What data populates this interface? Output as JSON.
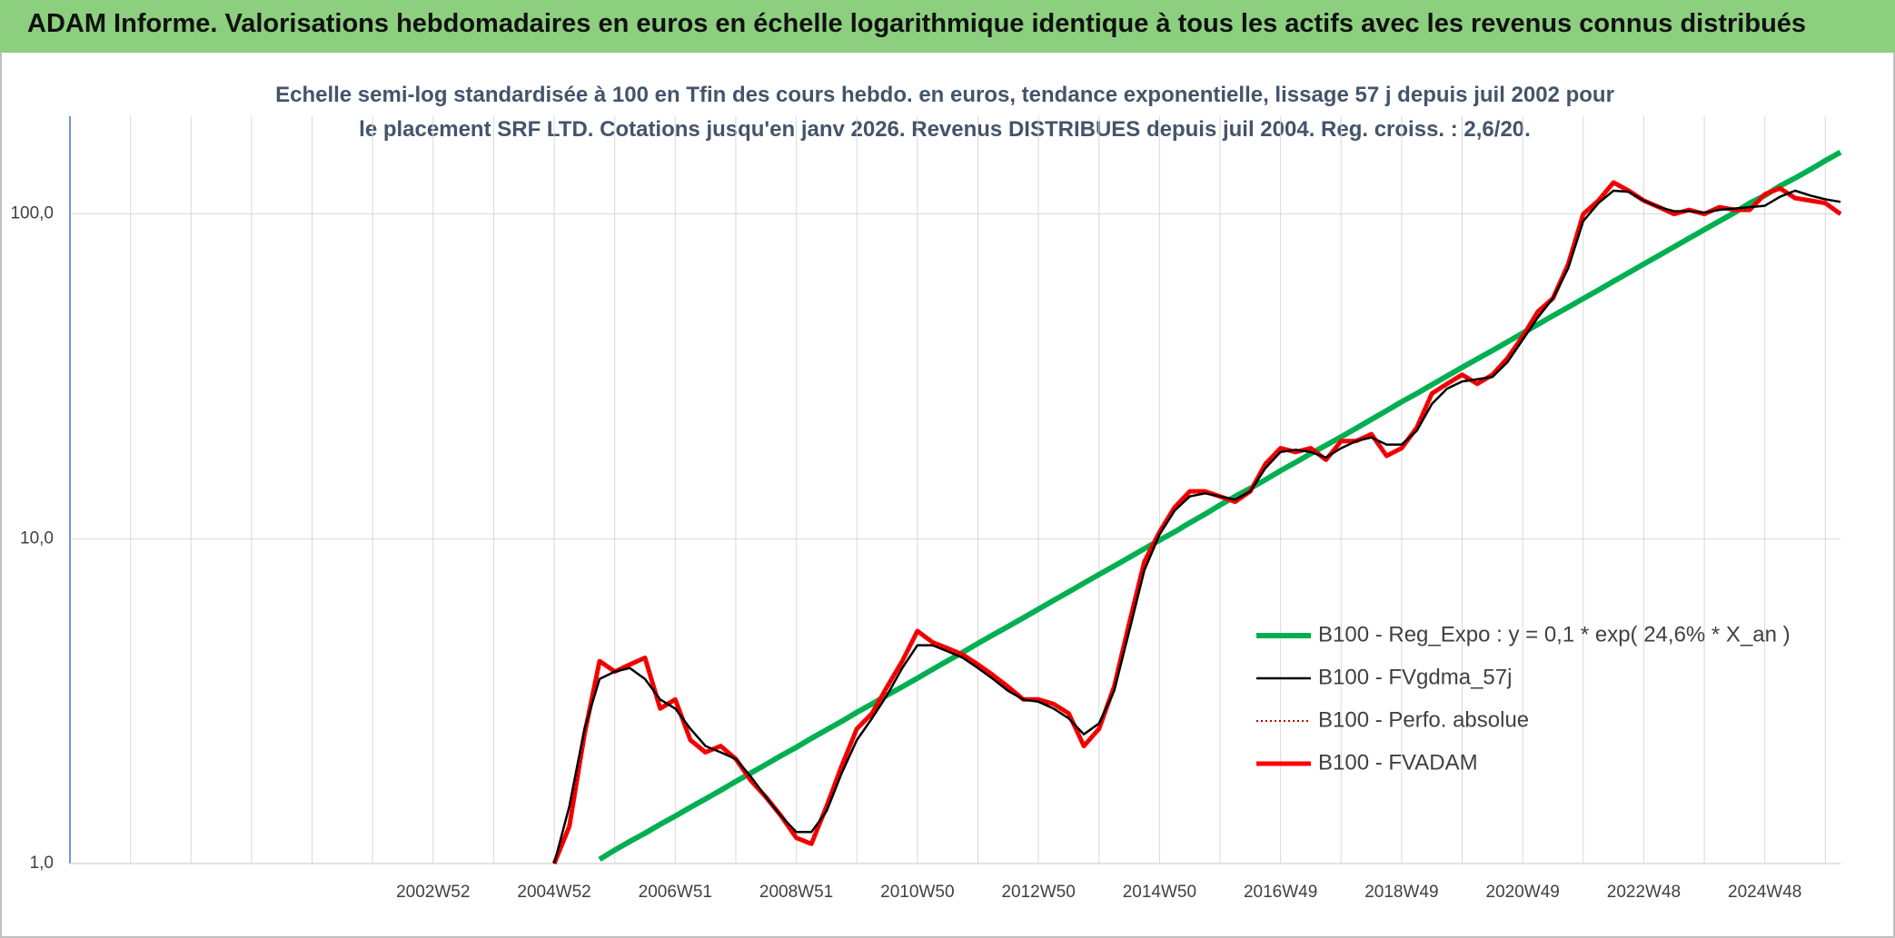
{
  "chart_data": {
    "type": "line",
    "title": "ADAM Informe. Valorisations hebdomadaires en euros en échelle logarithmique identique à tous les actifs avec les revenus connus distribués",
    "subtitle": "Echelle semi-log standardisée à 100 en Tfin des cours hebdo. en euros, tendance exponentielle, lissage 57 j depuis juil 2002 pour le placement SRF LTD. Cotations jusqu'en janv 2026. Revenus DISTRIBUES depuis juil 2004. Reg. croiss. : 2,6/20.",
    "log_scale": true,
    "grid": true,
    "legend": "right",
    "ylim": [
      1,
      200
    ],
    "yticks": [
      {
        "value": 1,
        "label": "1,0"
      },
      {
        "value": 10,
        "label": "10,0"
      },
      {
        "value": 100,
        "label": "100,0"
      }
    ],
    "categories": [
      null,
      null,
      null,
      null,
      null,
      null,
      null,
      null,
      null,
      null,
      null,
      null,
      null,
      null,
      null,
      null,
      null,
      null,
      null,
      null,
      null,
      null,
      null,
      null,
      "2002W52",
      null,
      null,
      null,
      null,
      null,
      null,
      null,
      "2004W52",
      null,
      null,
      null,
      null,
      null,
      null,
      null,
      "2006W51",
      null,
      null,
      null,
      null,
      null,
      null,
      null,
      "2008W51",
      null,
      null,
      null,
      null,
      null,
      null,
      null,
      "2010W50",
      null,
      null,
      null,
      null,
      null,
      null,
      null,
      "2012W50",
      null,
      null,
      null,
      null,
      null,
      null,
      null,
      "2014W50",
      null,
      null,
      null,
      null,
      null,
      null,
      null,
      "2016W49",
      null,
      null,
      null,
      null,
      null,
      null,
      null,
      "2018W49",
      null,
      null,
      null,
      null,
      null,
      null,
      null,
      "2020W49",
      null,
      null,
      null,
      null,
      null,
      null,
      null,
      "2022W48",
      null,
      null,
      null,
      null,
      null,
      null,
      null,
      "2024W48",
      null,
      null,
      null,
      null,
      null
    ],
    "series": [
      {
        "name": "B100 - Reg_Expo : y = 0,1 * exp( 24,6% *  X_an )",
        "color": "#00b050",
        "width": 6,
        "dash": "none",
        "values": [
          null,
          null,
          null,
          null,
          null,
          null,
          null,
          null,
          null,
          null,
          null,
          null,
          null,
          null,
          null,
          null,
          null,
          null,
          null,
          null,
          null,
          null,
          null,
          null,
          null,
          null,
          null,
          null,
          null,
          null,
          null,
          null,
          null,
          null,
          null,
          1.03,
          1.1,
          1.17,
          1.24,
          1.32,
          1.4,
          1.49,
          1.58,
          1.68,
          1.79,
          1.9,
          2.02,
          2.15,
          2.28,
          2.43,
          2.58,
          2.74,
          2.92,
          3.1,
          3.3,
          3.5,
          3.72,
          3.96,
          4.21,
          4.47,
          4.76,
          5.06,
          5.37,
          5.71,
          6.07,
          6.46,
          6.86,
          7.3,
          7.76,
          8.24,
          8.76,
          9.32,
          9.9,
          10.5,
          11.2,
          11.9,
          12.7,
          13.5,
          14.3,
          15.2,
          16.2,
          17.2,
          18.3,
          19.4,
          20.6,
          21.9,
          23.3,
          24.8,
          26.4,
          28.0,
          29.8,
          31.7,
          33.7,
          35.8,
          38.0,
          40.4,
          43.0,
          45.7,
          48.6,
          51.6,
          54.9,
          58.3,
          62.0,
          65.9,
          70.1,
          74.5,
          79.2,
          84.2,
          89.5,
          95.1,
          101,
          108,
          114,
          122,
          129,
          137,
          146,
          155
        ]
      },
      {
        "name": "B100 - FVgdma_57j",
        "color": "#000000",
        "width": 2.5,
        "dash": "none",
        "values": [
          null,
          null,
          null,
          null,
          null,
          null,
          null,
          null,
          null,
          null,
          null,
          null,
          null,
          null,
          null,
          null,
          null,
          null,
          null,
          null,
          null,
          null,
          null,
          null,
          null,
          null,
          null,
          null,
          null,
          null,
          null,
          null,
          1.0,
          1.5,
          2.6,
          3.7,
          3.9,
          4.0,
          3.7,
          3.2,
          3.0,
          2.6,
          2.3,
          2.2,
          2.1,
          1.85,
          1.6,
          1.4,
          1.25,
          1.25,
          1.45,
          1.9,
          2.4,
          2.8,
          3.3,
          4.0,
          4.7,
          4.7,
          4.5,
          4.3,
          4.0,
          3.7,
          3.4,
          3.2,
          3.15,
          3.0,
          2.8,
          2.5,
          2.7,
          3.4,
          5.2,
          8.0,
          10.3,
          12.2,
          13.5,
          13.8,
          13.5,
          13.2,
          14,
          16.5,
          18.5,
          18.8,
          18.5,
          17.8,
          19,
          20,
          20.5,
          19.5,
          19.5,
          21.5,
          26,
          29,
          30.5,
          31,
          31.5,
          35,
          41,
          48,
          55,
          68,
          95,
          108,
          118,
          117,
          110,
          105,
          102,
          102,
          101,
          103,
          104,
          105,
          106,
          113,
          118,
          114,
          111,
          109
        ]
      },
      {
        "name": "B100 - Perfo. absolue",
        "color": "#c00000",
        "width": 2,
        "dash": "2 3",
        "values": [
          null,
          null,
          null,
          null,
          null,
          null,
          null,
          null,
          null,
          null,
          null,
          null,
          null,
          null,
          null,
          null,
          null,
          null,
          null,
          null,
          null,
          null,
          null,
          null,
          null,
          null,
          null,
          null,
          null,
          null,
          null,
          null,
          1.0,
          1.3,
          2.5,
          4.2,
          3.9,
          4.1,
          4.3,
          3.0,
          3.2,
          2.4,
          2.2,
          2.3,
          2.1,
          1.8,
          1.6,
          1.4,
          1.2,
          1.15,
          1.5,
          2.0,
          2.6,
          2.9,
          3.5,
          4.2,
          5.2,
          4.8,
          4.6,
          4.4,
          4.1,
          3.8,
          3.5,
          3.2,
          3.2,
          3.1,
          2.9,
          2.3,
          2.6,
          3.5,
          5.5,
          8.5,
          10.5,
          12.5,
          14,
          14,
          13.5,
          13,
          14,
          17,
          19,
          18.5,
          19,
          17.5,
          20,
          20,
          21,
          18,
          19,
          22,
          28,
          30,
          32,
          30,
          32,
          36,
          42,
          50,
          55,
          70,
          100,
          110,
          125,
          118,
          110,
          105,
          100,
          103,
          100,
          105,
          103,
          103,
          115,
          120,
          112,
          110,
          108,
          100
        ]
      },
      {
        "name": "B100 - FVADAM",
        "color": "#ff0000",
        "width": 5,
        "dash": "none",
        "values": [
          null,
          null,
          null,
          null,
          null,
          null,
          null,
          null,
          null,
          null,
          null,
          null,
          null,
          null,
          null,
          null,
          null,
          null,
          null,
          null,
          null,
          null,
          null,
          null,
          null,
          null,
          null,
          null,
          null,
          null,
          null,
          null,
          1.0,
          1.3,
          2.5,
          4.2,
          3.9,
          4.1,
          4.3,
          3.0,
          3.2,
          2.4,
          2.2,
          2.3,
          2.1,
          1.8,
          1.6,
          1.4,
          1.2,
          1.15,
          1.5,
          2.0,
          2.6,
          2.9,
          3.5,
          4.2,
          5.2,
          4.8,
          4.6,
          4.4,
          4.1,
          3.8,
          3.5,
          3.2,
          3.2,
          3.1,
          2.9,
          2.3,
          2.6,
          3.5,
          5.5,
          8.5,
          10.5,
          12.5,
          14,
          14,
          13.5,
          13,
          14,
          17,
          19,
          18.5,
          19,
          17.5,
          20,
          20,
          21,
          18,
          19,
          22,
          28,
          30,
          32,
          30,
          32,
          36,
          42,
          50,
          55,
          70,
          100,
          110,
          125,
          118,
          110,
          105,
          100,
          103,
          100,
          105,
          103,
          103,
          115,
          120,
          112,
          110,
          108,
          100
        ]
      }
    ]
  }
}
